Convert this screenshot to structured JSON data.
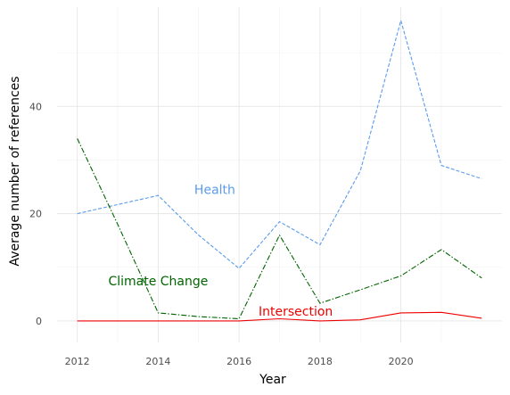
{
  "chart_data": {
    "type": "line",
    "title": "",
    "xlabel": "Year",
    "ylabel": "Average number of references",
    "xlim": [
      2011.5,
      2022.5
    ],
    "ylim": [
      -4,
      58.5
    ],
    "x_ticks": [
      2012,
      2014,
      2016,
      2018,
      2020
    ],
    "y_ticks": [
      0,
      20,
      40
    ],
    "grid": true,
    "legend": "none",
    "x": [
      2012,
      2013,
      2014,
      2015,
      2016,
      2017,
      2018,
      2019,
      2020,
      2021,
      2022
    ],
    "series": [
      {
        "name": "Health",
        "color": "#5b9bea",
        "dash": "dashed",
        "values": [
          20,
          21.7,
          23.4,
          16,
          9.8,
          18.5,
          14.2,
          28,
          56,
          29,
          26.5
        ],
        "label_at": [
          2015.4,
          24.5
        ]
      },
      {
        "name": "Climate Change",
        "color": "#006400",
        "dash": "dashdot",
        "values": [
          34,
          18,
          1.5,
          0.8,
          0.4,
          16,
          3.3,
          5.8,
          8.4,
          13.3,
          8
        ],
        "label_at": [
          2014,
          7.5
        ]
      },
      {
        "name": "Intersection",
        "color": "#ee0000",
        "dash": "solid",
        "values": [
          0,
          0,
          0,
          0,
          0,
          0.4,
          0,
          0.2,
          1.5,
          1.6,
          0.5
        ],
        "label_at": [
          2017.4,
          1.8
        ]
      }
    ]
  }
}
